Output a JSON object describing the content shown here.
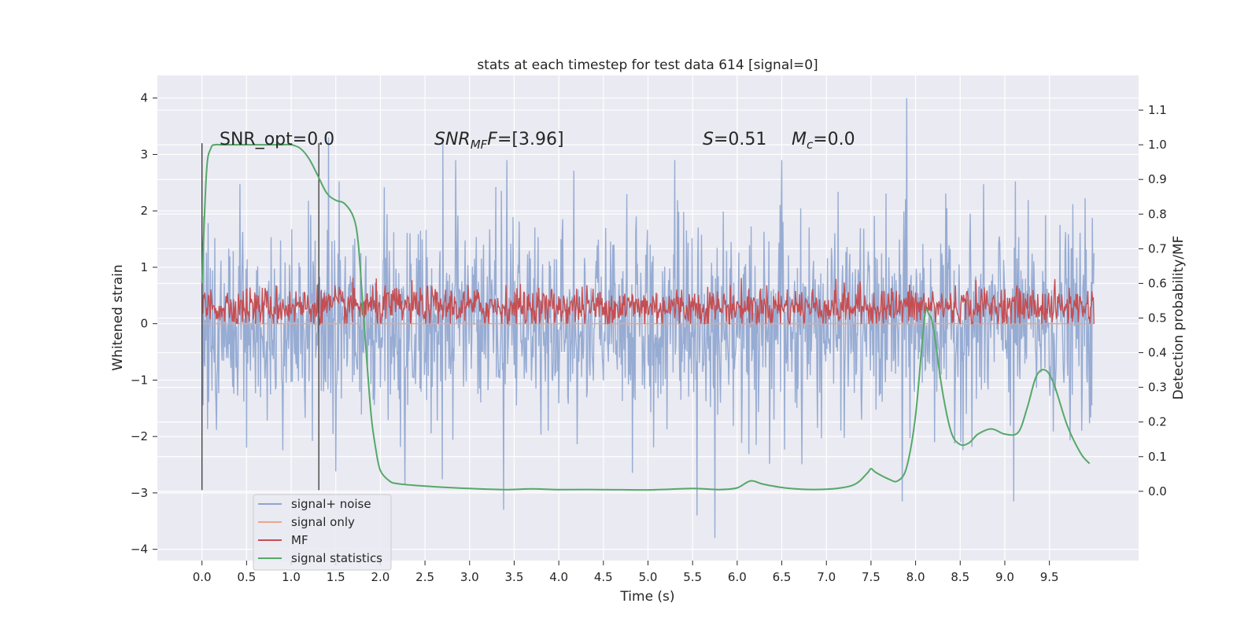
{
  "chart_data": {
    "type": "line",
    "title": "stats at each timestep for test data 614 [signal=0]",
    "xlabel": "Time (s)",
    "ylabel": "Whitened strain",
    "y2label": "Detection probability/MF",
    "xlim": [
      -0.5,
      10.5
    ],
    "ylim": [
      -4.2,
      4.4
    ],
    "y2lim": [
      -0.2,
      1.2
    ],
    "x_ticks": [
      "0.0",
      "0.5",
      "1.0",
      "1.5",
      "2.0",
      "2.5",
      "3.0",
      "3.5",
      "4.0",
      "4.5",
      "5.0",
      "5.5",
      "6.0",
      "6.5",
      "7.0",
      "7.5",
      "8.0",
      "8.5",
      "9.0",
      "9.5"
    ],
    "y_ticks": [
      "4",
      "3",
      "2",
      "1",
      "0",
      "−1",
      "−2",
      "−3",
      "−4"
    ],
    "y2_ticks": [
      "1.1",
      "1.0",
      "0.9",
      "0.8",
      "0.7",
      "0.6",
      "0.5",
      "0.4",
      "0.3",
      "0.2",
      "0.1",
      "0.0"
    ],
    "grid": true,
    "legend_position": "lower-left",
    "annotations": {
      "snr_opt": "SNR_opt=0.0",
      "snr_mf_prefix": "SNR",
      "snr_mf_sub": "MF",
      "snr_mf_value": "=[3.96]",
      "s_prefix": "S",
      "s_value": "=0.51",
      "mc_prefix": "M",
      "mc_sub": "c",
      "mc_value": "=0.0"
    },
    "vlines": [
      0.0,
      1.31
    ],
    "series": [
      {
        "name": "signal+ noise",
        "color": "#8ea5cf",
        "axis": "left",
        "kind": "noise",
        "x_range": [
          0.0,
          10.0
        ],
        "mean": 0.0,
        "std": 0.85,
        "extreme_peaks": [
          [
            0.0,
            1.6
          ],
          [
            1.42,
            3.3
          ],
          [
            2.7,
            3.2
          ],
          [
            3.38,
            -3.3
          ],
          [
            5.55,
            -3.4
          ],
          [
            5.75,
            -3.8
          ],
          [
            7.9,
            4.0
          ],
          [
            7.85,
            -3.15
          ],
          [
            9.1,
            -3.15
          ],
          [
            6.5,
            2.9
          ],
          [
            5.3,
            2.9
          ]
        ]
      },
      {
        "name": "signal only",
        "color": "#e8a88a",
        "axis": "left",
        "kind": "flat",
        "x": [
          0.0,
          10.0
        ],
        "y": [
          0.0,
          0.0
        ]
      },
      {
        "name": "MF",
        "color": "#c44e52",
        "axis": "left",
        "kind": "noise-positive",
        "x_range": [
          0.0,
          10.0
        ],
        "mean": 0.3,
        "std": 0.18
      },
      {
        "name": "signal statistics",
        "color": "#55a868",
        "axis": "right",
        "kind": "line",
        "x": [
          0.0,
          0.05,
          0.1,
          0.15,
          0.2,
          0.3,
          0.5,
          0.7,
          0.9,
          1.0,
          1.1,
          1.2,
          1.3,
          1.4,
          1.5,
          1.6,
          1.7,
          1.75,
          1.8,
          1.85,
          1.9,
          1.95,
          2.0,
          2.1,
          2.2,
          2.5,
          3.0,
          3.4,
          3.7,
          4.0,
          4.5,
          5.0,
          5.5,
          5.8,
          6.0,
          6.15,
          6.3,
          6.6,
          7.0,
          7.3,
          7.45,
          7.5,
          7.55,
          7.7,
          7.8,
          7.9,
          8.0,
          8.1,
          8.15,
          8.2,
          8.3,
          8.4,
          8.5,
          8.6,
          8.7,
          8.85,
          9.0,
          9.15,
          9.25,
          9.35,
          9.45,
          9.55,
          9.7,
          9.85,
          9.95
        ],
        "y": [
          0.6,
          0.92,
          0.99,
          1.0,
          1.0,
          1.0,
          1.0,
          1.0,
          1.0,
          1.0,
          0.99,
          0.96,
          0.91,
          0.86,
          0.84,
          0.83,
          0.79,
          0.72,
          0.55,
          0.37,
          0.21,
          0.12,
          0.06,
          0.03,
          0.022,
          0.015,
          0.008,
          0.005,
          0.007,
          0.005,
          0.005,
          0.004,
          0.008,
          0.005,
          0.01,
          0.03,
          0.02,
          0.008,
          0.006,
          0.018,
          0.05,
          0.065,
          0.055,
          0.035,
          0.03,
          0.07,
          0.22,
          0.5,
          0.51,
          0.47,
          0.29,
          0.17,
          0.135,
          0.14,
          0.165,
          0.18,
          0.165,
          0.17,
          0.24,
          0.33,
          0.35,
          0.31,
          0.19,
          0.11,
          0.08
        ]
      }
    ]
  }
}
